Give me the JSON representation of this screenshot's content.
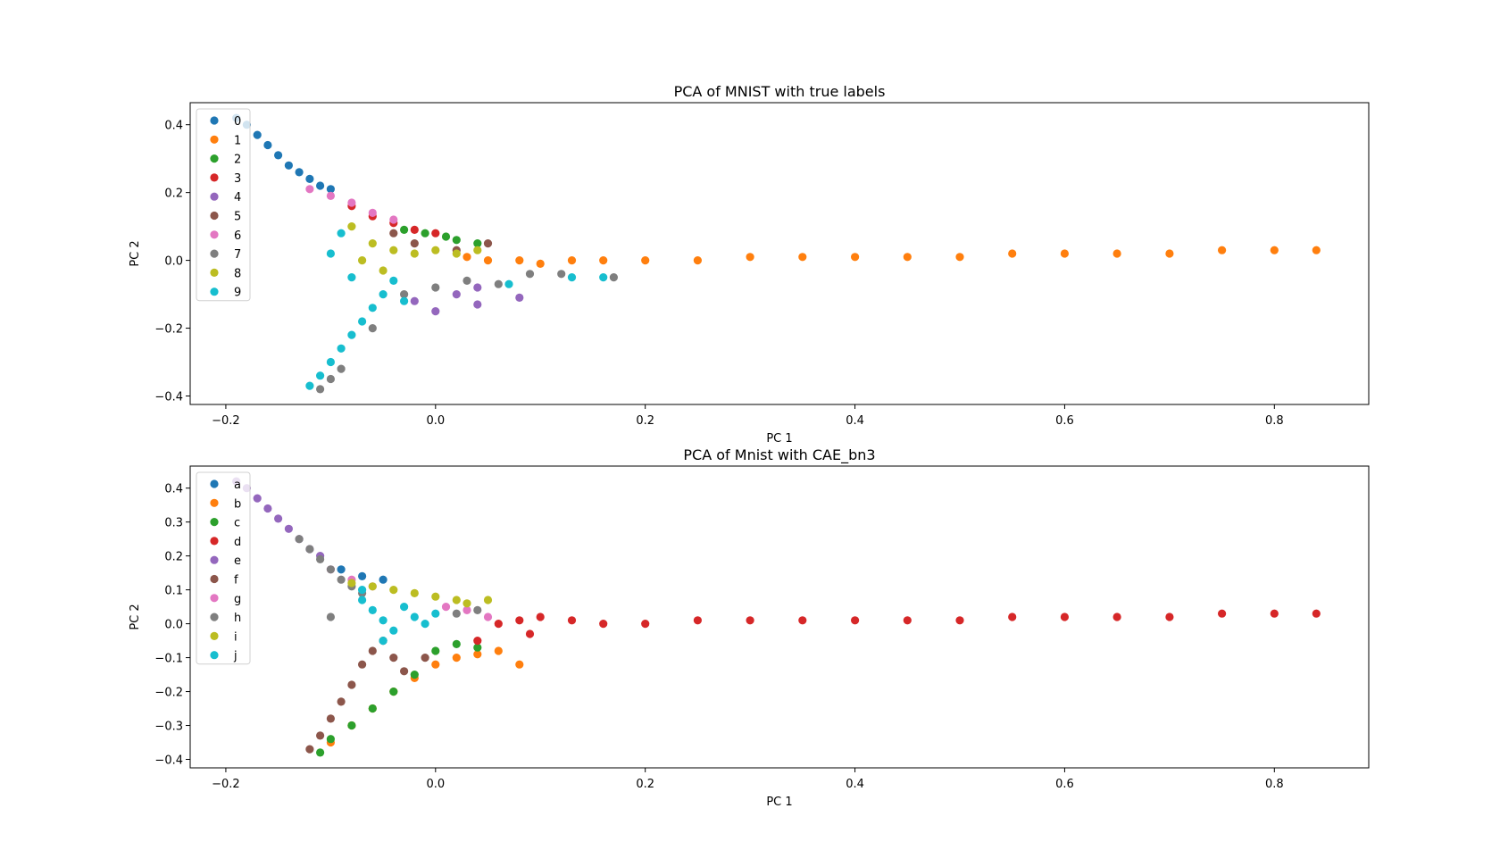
{
  "chart_data": [
    {
      "type": "scatter",
      "title": "PCA of MNIST with true labels",
      "xlabel": "PC 1",
      "ylabel": "PC 2",
      "xlim": [
        -0.2,
        0.85
      ],
      "ylim": [
        -0.4,
        0.4
      ],
      "xticks": [
        -0.2,
        0.0,
        0.2,
        0.4,
        0.6,
        0.8
      ],
      "xtick_labels": [
        "−0.2",
        "0.0",
        "0.2",
        "0.4",
        "0.6",
        "0.8"
      ],
      "yticks": [
        -0.4,
        -0.2,
        0.0,
        0.2,
        0.4
      ],
      "ytick_labels": [
        "−0.4",
        "−0.2",
        "0.0",
        "0.2",
        "0.4"
      ],
      "grid": false,
      "legend_position": "top-left",
      "series": [
        {
          "name": "0",
          "color": "#1f77b4",
          "points": [
            [
              -0.19,
              0.42
            ],
            [
              -0.18,
              0.4
            ],
            [
              -0.17,
              0.37
            ],
            [
              -0.16,
              0.34
            ],
            [
              -0.15,
              0.31
            ],
            [
              -0.14,
              0.28
            ],
            [
              -0.13,
              0.26
            ],
            [
              -0.12,
              0.24
            ],
            [
              -0.11,
              0.22
            ],
            [
              -0.1,
              0.21
            ]
          ]
        },
        {
          "name": "1",
          "color": "#ff7f0e",
          "points": [
            [
              0.03,
              0.01
            ],
            [
              0.05,
              0.0
            ],
            [
              0.08,
              0.0
            ],
            [
              0.1,
              -0.01
            ],
            [
              0.13,
              0.0
            ],
            [
              0.16,
              0.0
            ],
            [
              0.2,
              0.0
            ],
            [
              0.25,
              0.0
            ],
            [
              0.3,
              0.01
            ],
            [
              0.35,
              0.01
            ],
            [
              0.4,
              0.01
            ],
            [
              0.45,
              0.01
            ],
            [
              0.5,
              0.01
            ],
            [
              0.55,
              0.02
            ],
            [
              0.6,
              0.02
            ],
            [
              0.65,
              0.02
            ],
            [
              0.7,
              0.02
            ],
            [
              0.75,
              0.03
            ],
            [
              0.8,
              0.03
            ],
            [
              0.84,
              0.03
            ]
          ]
        },
        {
          "name": "2",
          "color": "#2ca02c",
          "points": [
            [
              -0.03,
              0.09
            ],
            [
              -0.01,
              0.08
            ],
            [
              0.01,
              0.07
            ],
            [
              0.02,
              0.06
            ],
            [
              0.04,
              0.05
            ]
          ]
        },
        {
          "name": "3",
          "color": "#d62728",
          "points": [
            [
              -0.08,
              0.16
            ],
            [
              -0.06,
              0.13
            ],
            [
              -0.04,
              0.11
            ],
            [
              -0.02,
              0.09
            ],
            [
              0.0,
              0.08
            ]
          ]
        },
        {
          "name": "4",
          "color": "#9467bd",
          "points": [
            [
              -0.02,
              -0.12
            ],
            [
              0.0,
              -0.15
            ],
            [
              0.02,
              -0.1
            ],
            [
              0.04,
              -0.08
            ],
            [
              0.08,
              -0.11
            ],
            [
              0.04,
              -0.13
            ]
          ]
        },
        {
          "name": "5",
          "color": "#8c564b",
          "points": [
            [
              -0.04,
              0.08
            ],
            [
              -0.02,
              0.05
            ],
            [
              0.02,
              0.03
            ],
            [
              0.05,
              0.05
            ]
          ]
        },
        {
          "name": "6",
          "color": "#e377c2",
          "points": [
            [
              -0.12,
              0.21
            ],
            [
              -0.1,
              0.19
            ],
            [
              -0.08,
              0.17
            ],
            [
              -0.06,
              0.14
            ],
            [
              -0.04,
              0.12
            ]
          ]
        },
        {
          "name": "7",
          "color": "#7f7f7f",
          "points": [
            [
              -0.11,
              -0.38
            ],
            [
              -0.1,
              -0.35
            ],
            [
              -0.09,
              -0.32
            ],
            [
              -0.06,
              -0.2
            ],
            [
              -0.03,
              -0.1
            ],
            [
              0.0,
              -0.08
            ],
            [
              0.03,
              -0.06
            ],
            [
              0.06,
              -0.07
            ],
            [
              0.09,
              -0.04
            ],
            [
              0.12,
              -0.04
            ],
            [
              0.17,
              -0.05
            ]
          ]
        },
        {
          "name": "8",
          "color": "#bcbd22",
          "points": [
            [
              -0.08,
              0.1
            ],
            [
              -0.06,
              0.05
            ],
            [
              -0.04,
              0.03
            ],
            [
              -0.02,
              0.02
            ],
            [
              0.0,
              0.03
            ],
            [
              0.02,
              0.02
            ],
            [
              0.04,
              0.03
            ],
            [
              -0.05,
              -0.03
            ],
            [
              -0.07,
              0.0
            ]
          ]
        },
        {
          "name": "9",
          "color": "#17becf",
          "points": [
            [
              -0.12,
              -0.37
            ],
            [
              -0.11,
              -0.34
            ],
            [
              -0.1,
              -0.3
            ],
            [
              -0.09,
              -0.26
            ],
            [
              -0.08,
              -0.22
            ],
            [
              -0.07,
              -0.18
            ],
            [
              -0.06,
              -0.14
            ],
            [
              -0.05,
              -0.1
            ],
            [
              -0.04,
              -0.06
            ],
            [
              -0.08,
              -0.05
            ],
            [
              -0.1,
              0.02
            ],
            [
              -0.09,
              0.08
            ],
            [
              -0.03,
              -0.12
            ],
            [
              0.07,
              -0.07
            ],
            [
              0.13,
              -0.05
            ],
            [
              0.16,
              -0.05
            ]
          ]
        }
      ]
    },
    {
      "type": "scatter",
      "title": "PCA of Mnist with CAE_bn3",
      "xlabel": "PC 1",
      "ylabel": "PC 2",
      "xlim": [
        -0.2,
        0.85
      ],
      "ylim": [
        -0.4,
        0.4
      ],
      "xticks": [
        -0.2,
        0.0,
        0.2,
        0.4,
        0.6,
        0.8
      ],
      "xtick_labels": [
        "−0.2",
        "0.0",
        "0.2",
        "0.4",
        "0.6",
        "0.8"
      ],
      "yticks": [
        -0.4,
        -0.3,
        -0.2,
        -0.1,
        0.0,
        0.1,
        0.2,
        0.3,
        0.4
      ],
      "ytick_labels": [
        "−0.4",
        "−0.3",
        "−0.2",
        "−0.1",
        "0.0",
        "0.1",
        "0.2",
        "0.3",
        "0.4"
      ],
      "grid": false,
      "legend_position": "top-left",
      "series": [
        {
          "name": "a",
          "color": "#1f77b4",
          "points": [
            [
              -0.09,
              0.16
            ],
            [
              -0.07,
              0.14
            ],
            [
              -0.05,
              0.13
            ]
          ]
        },
        {
          "name": "b",
          "color": "#ff7f0e",
          "points": [
            [
              -0.1,
              -0.35
            ],
            [
              -0.08,
              -0.3
            ],
            [
              -0.06,
              -0.25
            ],
            [
              -0.04,
              -0.2
            ],
            [
              -0.02,
              -0.16
            ],
            [
              0.0,
              -0.12
            ],
            [
              0.02,
              -0.1
            ],
            [
              0.04,
              -0.09
            ],
            [
              0.06,
              -0.08
            ],
            [
              0.08,
              -0.12
            ]
          ]
        },
        {
          "name": "c",
          "color": "#2ca02c",
          "points": [
            [
              -0.11,
              -0.38
            ],
            [
              -0.1,
              -0.34
            ],
            [
              -0.08,
              -0.3
            ],
            [
              -0.06,
              -0.25
            ],
            [
              -0.04,
              -0.2
            ],
            [
              -0.02,
              -0.15
            ],
            [
              0.0,
              -0.08
            ],
            [
              0.02,
              -0.06
            ],
            [
              0.04,
              -0.07
            ]
          ]
        },
        {
          "name": "d",
          "color": "#d62728",
          "points": [
            [
              0.06,
              0.0
            ],
            [
              0.08,
              0.01
            ],
            [
              0.1,
              0.02
            ],
            [
              0.13,
              0.01
            ],
            [
              0.16,
              0.0
            ],
            [
              0.2,
              0.0
            ],
            [
              0.25,
              0.01
            ],
            [
              0.3,
              0.01
            ],
            [
              0.35,
              0.01
            ],
            [
              0.4,
              0.01
            ],
            [
              0.45,
              0.01
            ],
            [
              0.5,
              0.01
            ],
            [
              0.55,
              0.02
            ],
            [
              0.6,
              0.02
            ],
            [
              0.65,
              0.02
            ],
            [
              0.7,
              0.02
            ],
            [
              0.75,
              0.03
            ],
            [
              0.8,
              0.03
            ],
            [
              0.84,
              0.03
            ],
            [
              0.04,
              -0.05
            ],
            [
              0.09,
              -0.03
            ]
          ]
        },
        {
          "name": "e",
          "color": "#9467bd",
          "points": [
            [
              -0.19,
              0.42
            ],
            [
              -0.18,
              0.4
            ],
            [
              -0.17,
              0.37
            ],
            [
              -0.16,
              0.34
            ],
            [
              -0.15,
              0.31
            ],
            [
              -0.14,
              0.28
            ],
            [
              -0.13,
              0.25
            ],
            [
              -0.12,
              0.22
            ],
            [
              -0.11,
              0.2
            ]
          ]
        },
        {
          "name": "f",
          "color": "#8c564b",
          "points": [
            [
              -0.12,
              -0.37
            ],
            [
              -0.11,
              -0.33
            ],
            [
              -0.1,
              -0.28
            ],
            [
              -0.09,
              -0.23
            ],
            [
              -0.08,
              -0.18
            ],
            [
              -0.07,
              -0.12
            ],
            [
              -0.06,
              -0.08
            ],
            [
              -0.05,
              -0.05
            ],
            [
              -0.04,
              -0.1
            ],
            [
              -0.03,
              -0.14
            ],
            [
              -0.01,
              -0.1
            ]
          ]
        },
        {
          "name": "g",
          "color": "#e377c2",
          "points": [
            [
              -0.1,
              0.16
            ],
            [
              -0.08,
              0.13
            ],
            [
              -0.06,
              0.11
            ],
            [
              0.01,
              0.05
            ],
            [
              0.03,
              0.04
            ],
            [
              0.05,
              0.02
            ]
          ]
        },
        {
          "name": "h",
          "color": "#7f7f7f",
          "points": [
            [
              -0.13,
              0.25
            ],
            [
              -0.12,
              0.22
            ],
            [
              -0.11,
              0.19
            ],
            [
              -0.1,
              0.16
            ],
            [
              -0.09,
              0.13
            ],
            [
              -0.08,
              0.11
            ],
            [
              -0.07,
              0.09
            ],
            [
              -0.1,
              0.02
            ],
            [
              0.02,
              0.03
            ],
            [
              0.04,
              0.04
            ]
          ]
        },
        {
          "name": "i",
          "color": "#bcbd22",
          "points": [
            [
              -0.08,
              0.12
            ],
            [
              -0.06,
              0.11
            ],
            [
              -0.04,
              0.1
            ],
            [
              -0.02,
              0.09
            ],
            [
              0.0,
              0.08
            ],
            [
              0.02,
              0.07
            ],
            [
              0.03,
              0.06
            ],
            [
              0.05,
              0.07
            ]
          ]
        },
        {
          "name": "j",
          "color": "#17becf",
          "points": [
            [
              -0.07,
              0.07
            ],
            [
              -0.06,
              0.04
            ],
            [
              -0.05,
              0.01
            ],
            [
              -0.04,
              -0.02
            ],
            [
              -0.03,
              0.05
            ],
            [
              -0.02,
              0.02
            ],
            [
              -0.01,
              0.0
            ],
            [
              0.0,
              0.03
            ],
            [
              -0.05,
              -0.05
            ],
            [
              -0.07,
              0.1
            ]
          ]
        }
      ]
    }
  ]
}
